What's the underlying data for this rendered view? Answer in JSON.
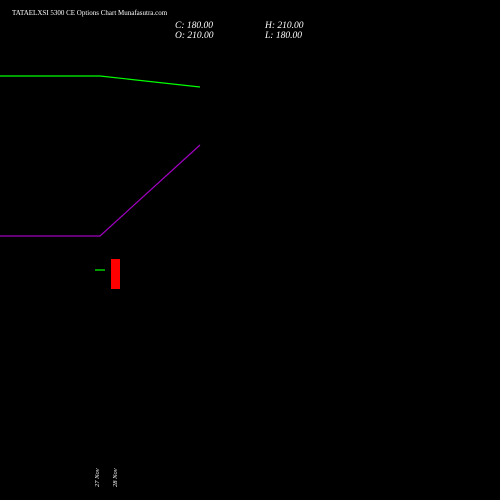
{
  "chart_data": {
    "type": "candlestick",
    "title": "TATAELXSI 5300  CE Options  Chart Munafasutra.com",
    "x": [
      "27 Nov",
      "28 Nov"
    ],
    "ylim": [
      -31,
      469
    ],
    "candles": [
      {
        "open": 199,
        "high": 199,
        "low": 199,
        "close": 199
      },
      {
        "open": 210,
        "high": 210,
        "low": 180,
        "close": 180,
        "labels": {
          "close": "C: 180.00",
          "high": "H: 210.00",
          "open": "O: 210.00",
          "low": "L: 180.00"
        }
      }
    ],
    "up_color": "#00ff00",
    "down_color": "#ff0000",
    "series": [
      {
        "color": "#00ff00",
        "values": [
          393,
          382
        ]
      },
      {
        "color": "#a000c0",
        "values": [
          233,
          324
        ]
      }
    ]
  }
}
